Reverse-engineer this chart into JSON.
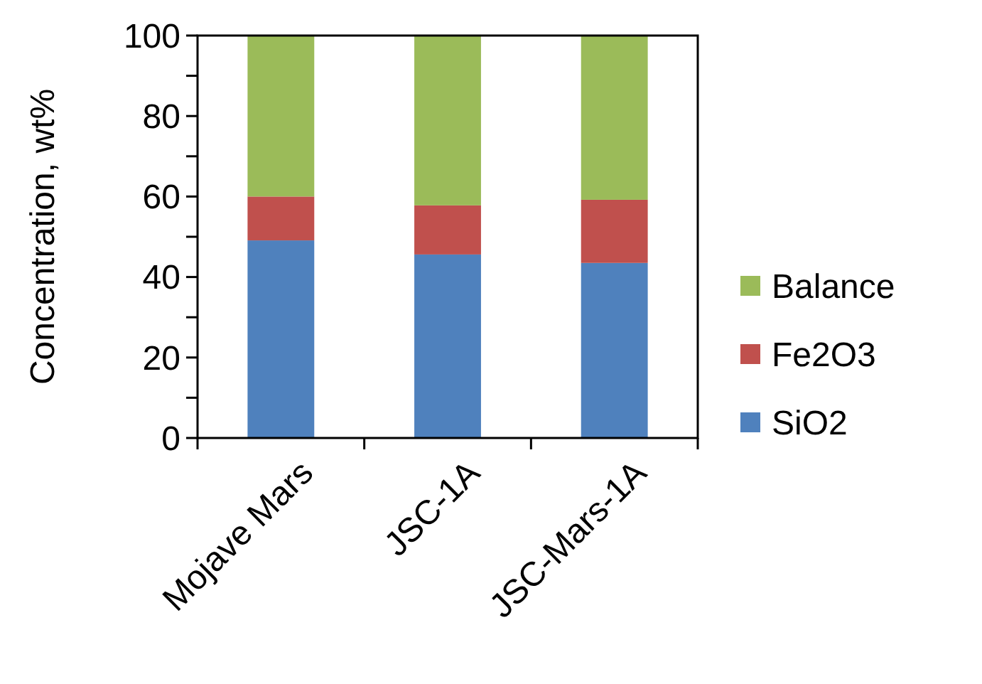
{
  "chart_data": {
    "type": "bar",
    "stacked": true,
    "ylabel": "Concentration, wt%",
    "categories": [
      "Mojave Mars",
      "JSC-1A",
      "JSC-Mars-1A"
    ],
    "series": [
      {
        "name": "SiO2",
        "color": "#4f81bd",
        "values": [
          49.1,
          45.6,
          43.5
        ]
      },
      {
        "name": "Fe2O3",
        "color": "#c0504d",
        "values": [
          10.9,
          12.2,
          15.7
        ]
      },
      {
        "name": "Balance",
        "color": "#9bbb59",
        "values": [
          40.0,
          42.2,
          40.8
        ]
      }
    ],
    "ylim": [
      0,
      100
    ],
    "yticks": [
      0,
      {
        "value": 10,
        "label": null
      },
      20,
      {
        "value": 30,
        "label": null
      },
      40,
      {
        "value": 50,
        "label": null
      },
      60,
      {
        "value": 70,
        "label": null
      },
      80,
      {
        "value": 90,
        "label": null
      },
      100
    ],
    "grid": false,
    "legend": "right"
  }
}
